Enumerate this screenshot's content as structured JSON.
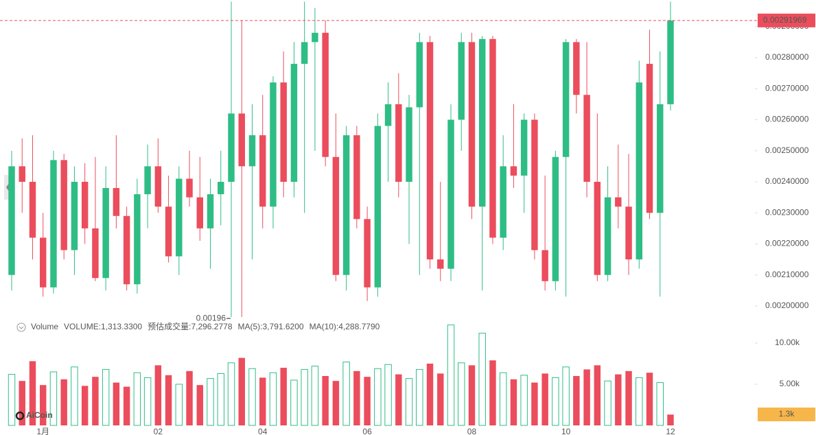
{
  "chart_data": {
    "type": "candlestick",
    "legend": [
      {
        "text": "Volume",
        "color": "#666666"
      },
      {
        "text": "VOLUME:1,313.3300",
        "color": "#666666"
      },
      {
        "text": "预估成交量:7,296.2778",
        "color": "#333333"
      },
      {
        "text": "MA(5):3,791.6200",
        "color": "#2ebd85"
      },
      {
        "text": "MA(10):4,288.7790",
        "color": "#f0b90b"
      }
    ],
    "watermark": "AiCoin",
    "up_color": "#2ebd85",
    "down_color": "#eb4d5c",
    "categories": [
      null,
      null,
      null,
      "1月",
      null,
      null,
      null,
      null,
      null,
      null,
      null,
      null,
      null,
      null,
      "02",
      null,
      null,
      null,
      null,
      null,
      null,
      null,
      null,
      null,
      "04",
      null,
      null,
      null,
      null,
      null,
      null,
      null,
      null,
      null,
      "06",
      null,
      null,
      null,
      null,
      null,
      null,
      null,
      null,
      null,
      "08",
      null,
      null,
      null,
      null,
      null,
      null,
      null,
      null,
      "10",
      null,
      null,
      null,
      null,
      null,
      null,
      null,
      null,
      null,
      "12"
    ],
    "ohlc": [
      [
        0.0021,
        0.0025,
        0.00205,
        0.00245
      ],
      [
        0.00245,
        0.00254,
        0.0023,
        0.0024
      ],
      [
        0.0024,
        0.00255,
        0.00215,
        0.00222
      ],
      [
        0.00222,
        0.0023,
        0.00203,
        0.00206
      ],
      [
        0.00206,
        0.0025,
        0.00204,
        0.00247
      ],
      [
        0.00247,
        0.00249,
        0.00215,
        0.00218
      ],
      [
        0.00218,
        0.00245,
        0.0021,
        0.0024
      ],
      [
        0.0024,
        0.00246,
        0.0022,
        0.00225
      ],
      [
        0.00225,
        0.00248,
        0.00208,
        0.00209
      ],
      [
        0.00209,
        0.00245,
        0.00205,
        0.00238
      ],
      [
        0.00238,
        0.00255,
        0.00225,
        0.00229
      ],
      [
        0.00229,
        0.00232,
        0.00205,
        0.00207
      ],
      [
        0.00207,
        0.00241,
        0.00204,
        0.00236
      ],
      [
        0.00236,
        0.00252,
        0.00225,
        0.00245
      ],
      [
        0.00245,
        0.00254,
        0.0023,
        0.00232
      ],
      [
        0.00232,
        0.00242,
        0.00214,
        0.00216
      ],
      [
        0.00216,
        0.00245,
        0.0021,
        0.00241
      ],
      [
        0.00241,
        0.0025,
        0.00232,
        0.00235
      ],
      [
        0.00235,
        0.00248,
        0.00221,
        0.00225
      ],
      [
        0.00225,
        0.00241,
        0.00212,
        0.00236
      ],
      [
        0.00236,
        0.0025,
        0.00226,
        0.0024
      ],
      [
        0.0024,
        0.00298,
        0.00196,
        0.00262
      ],
      [
        0.00262,
        0.00292,
        0.00196,
        0.00245
      ],
      [
        0.00245,
        0.00265,
        0.00215,
        0.00255
      ],
      [
        0.00255,
        0.00268,
        0.00225,
        0.00232
      ],
      [
        0.00232,
        0.00274,
        0.00225,
        0.00272
      ],
      [
        0.00272,
        0.00282,
        0.00235,
        0.0024
      ],
      [
        0.0024,
        0.00285,
        0.00235,
        0.00278
      ],
      [
        0.00278,
        0.00298,
        0.0023,
        0.00285
      ],
      [
        0.00285,
        0.00296,
        0.0025,
        0.00288
      ],
      [
        0.00288,
        0.00292,
        0.00245,
        0.00248
      ],
      [
        0.00248,
        0.00262,
        0.00208,
        0.0021
      ],
      [
        0.0021,
        0.00258,
        0.00205,
        0.00255
      ],
      [
        0.00255,
        0.00258,
        0.00225,
        0.00228
      ],
      [
        0.00228,
        0.00232,
        0.00201605,
        0.00206
      ],
      [
        0.00206,
        0.00262,
        0.00203,
        0.00258
      ],
      [
        0.00258,
        0.00272,
        0.0024,
        0.00265
      ],
      [
        0.00265,
        0.00275,
        0.00235,
        0.0024
      ],
      [
        0.0024,
        0.00268,
        0.0022,
        0.00264
      ],
      [
        0.00264,
        0.00288,
        0.0021,
        0.00285
      ],
      [
        0.00285,
        0.00287,
        0.00212,
        0.00215
      ],
      [
        0.00215,
        0.0024,
        0.00208,
        0.00212
      ],
      [
        0.00212,
        0.00265,
        0.00208,
        0.0026
      ],
      [
        0.0026,
        0.00288,
        0.0025,
        0.00285
      ],
      [
        0.00285,
        0.00288,
        0.00228,
        0.00232
      ],
      [
        0.00232,
        0.00287,
        0.00205,
        0.00286
      ],
      [
        0.00286,
        0.00287,
        0.0022,
        0.00222
      ],
      [
        0.00222,
        0.00255,
        0.00218,
        0.00245
      ],
      [
        0.00245,
        0.00265,
        0.00238,
        0.00242
      ],
      [
        0.00242,
        0.00262,
        0.0023,
        0.0026
      ],
      [
        0.0026,
        0.00262,
        0.00215,
        0.00218
      ],
      [
        0.00218,
        0.00242,
        0.00205,
        0.00208
      ],
      [
        0.00208,
        0.0025,
        0.00205,
        0.00248
      ],
      [
        0.00248,
        0.00286,
        0.00203,
        0.00285
      ],
      [
        0.00285,
        0.00286,
        0.00262,
        0.00268
      ],
      [
        0.00268,
        0.00285,
        0.00235,
        0.0024
      ],
      [
        0.0024,
        0.00262,
        0.00208,
        0.0021
      ],
      [
        0.0021,
        0.00245,
        0.00208,
        0.00235
      ],
      [
        0.00235,
        0.00252,
        0.00225,
        0.00232
      ],
      [
        0.00232,
        0.00249,
        0.0021,
        0.00215
      ],
      [
        0.00215,
        0.00279,
        0.00212,
        0.00272
      ],
      [
        0.00278,
        0.00289,
        0.00228,
        0.0023
      ],
      [
        0.0023,
        0.00282,
        0.00203,
        0.00265
      ],
      [
        0.00265,
        0.00298,
        0.00263,
        0.00291969
      ]
    ],
    "volume": [
      6200,
      5400,
      7800,
      4900,
      6500,
      5600,
      7100,
      4800,
      5900,
      6800,
      5200,
      4700,
      6400,
      5800,
      7300,
      6100,
      5000,
      6600,
      4900,
      5700,
      6300,
      7600,
      8200,
      6900,
      5800,
      6400,
      7000,
      5500,
      6800,
      7200,
      6000,
      5400,
      7700,
      6600,
      5900,
      6900,
      7400,
      6200,
      5700,
      6800,
      7500,
      6300,
      12200,
      7600,
      7300,
      11200,
      7900,
      6400,
      5600,
      6100,
      5200,
      6300,
      5800,
      7100,
      6000,
      6800,
      7300,
      5400,
      6200,
      6600,
      5800,
      6400,
      5200,
      1313.33
    ],
    "last_volume_label": "1.3k",
    "ylim": [
      0.0019646,
      0.0029856
    ],
    "yticks": [
      {
        "value": 0.002,
        "label": "0.00200000"
      },
      {
        "value": 0.0021,
        "label": "0.00210000"
      },
      {
        "value": 0.0022,
        "label": "0.00220000"
      },
      {
        "value": 0.0023,
        "label": "0.00230000"
      },
      {
        "value": 0.0024,
        "label": "0.00240000"
      },
      {
        "value": 0.0025,
        "label": "0.00250000"
      },
      {
        "value": 0.0026,
        "label": "0.00260000"
      },
      {
        "value": 0.0027,
        "label": "0.00270000"
      },
      {
        "value": 0.0028,
        "label": "0.00280000"
      },
      {
        "value": 0.0029,
        "label": "0.00290000"
      }
    ],
    "vlim": [
      0,
      12000
    ],
    "vticks": [
      {
        "value": 5000,
        "label": "5.00k"
      },
      {
        "value": 10000,
        "label": "10.00k"
      }
    ]
  }
}
